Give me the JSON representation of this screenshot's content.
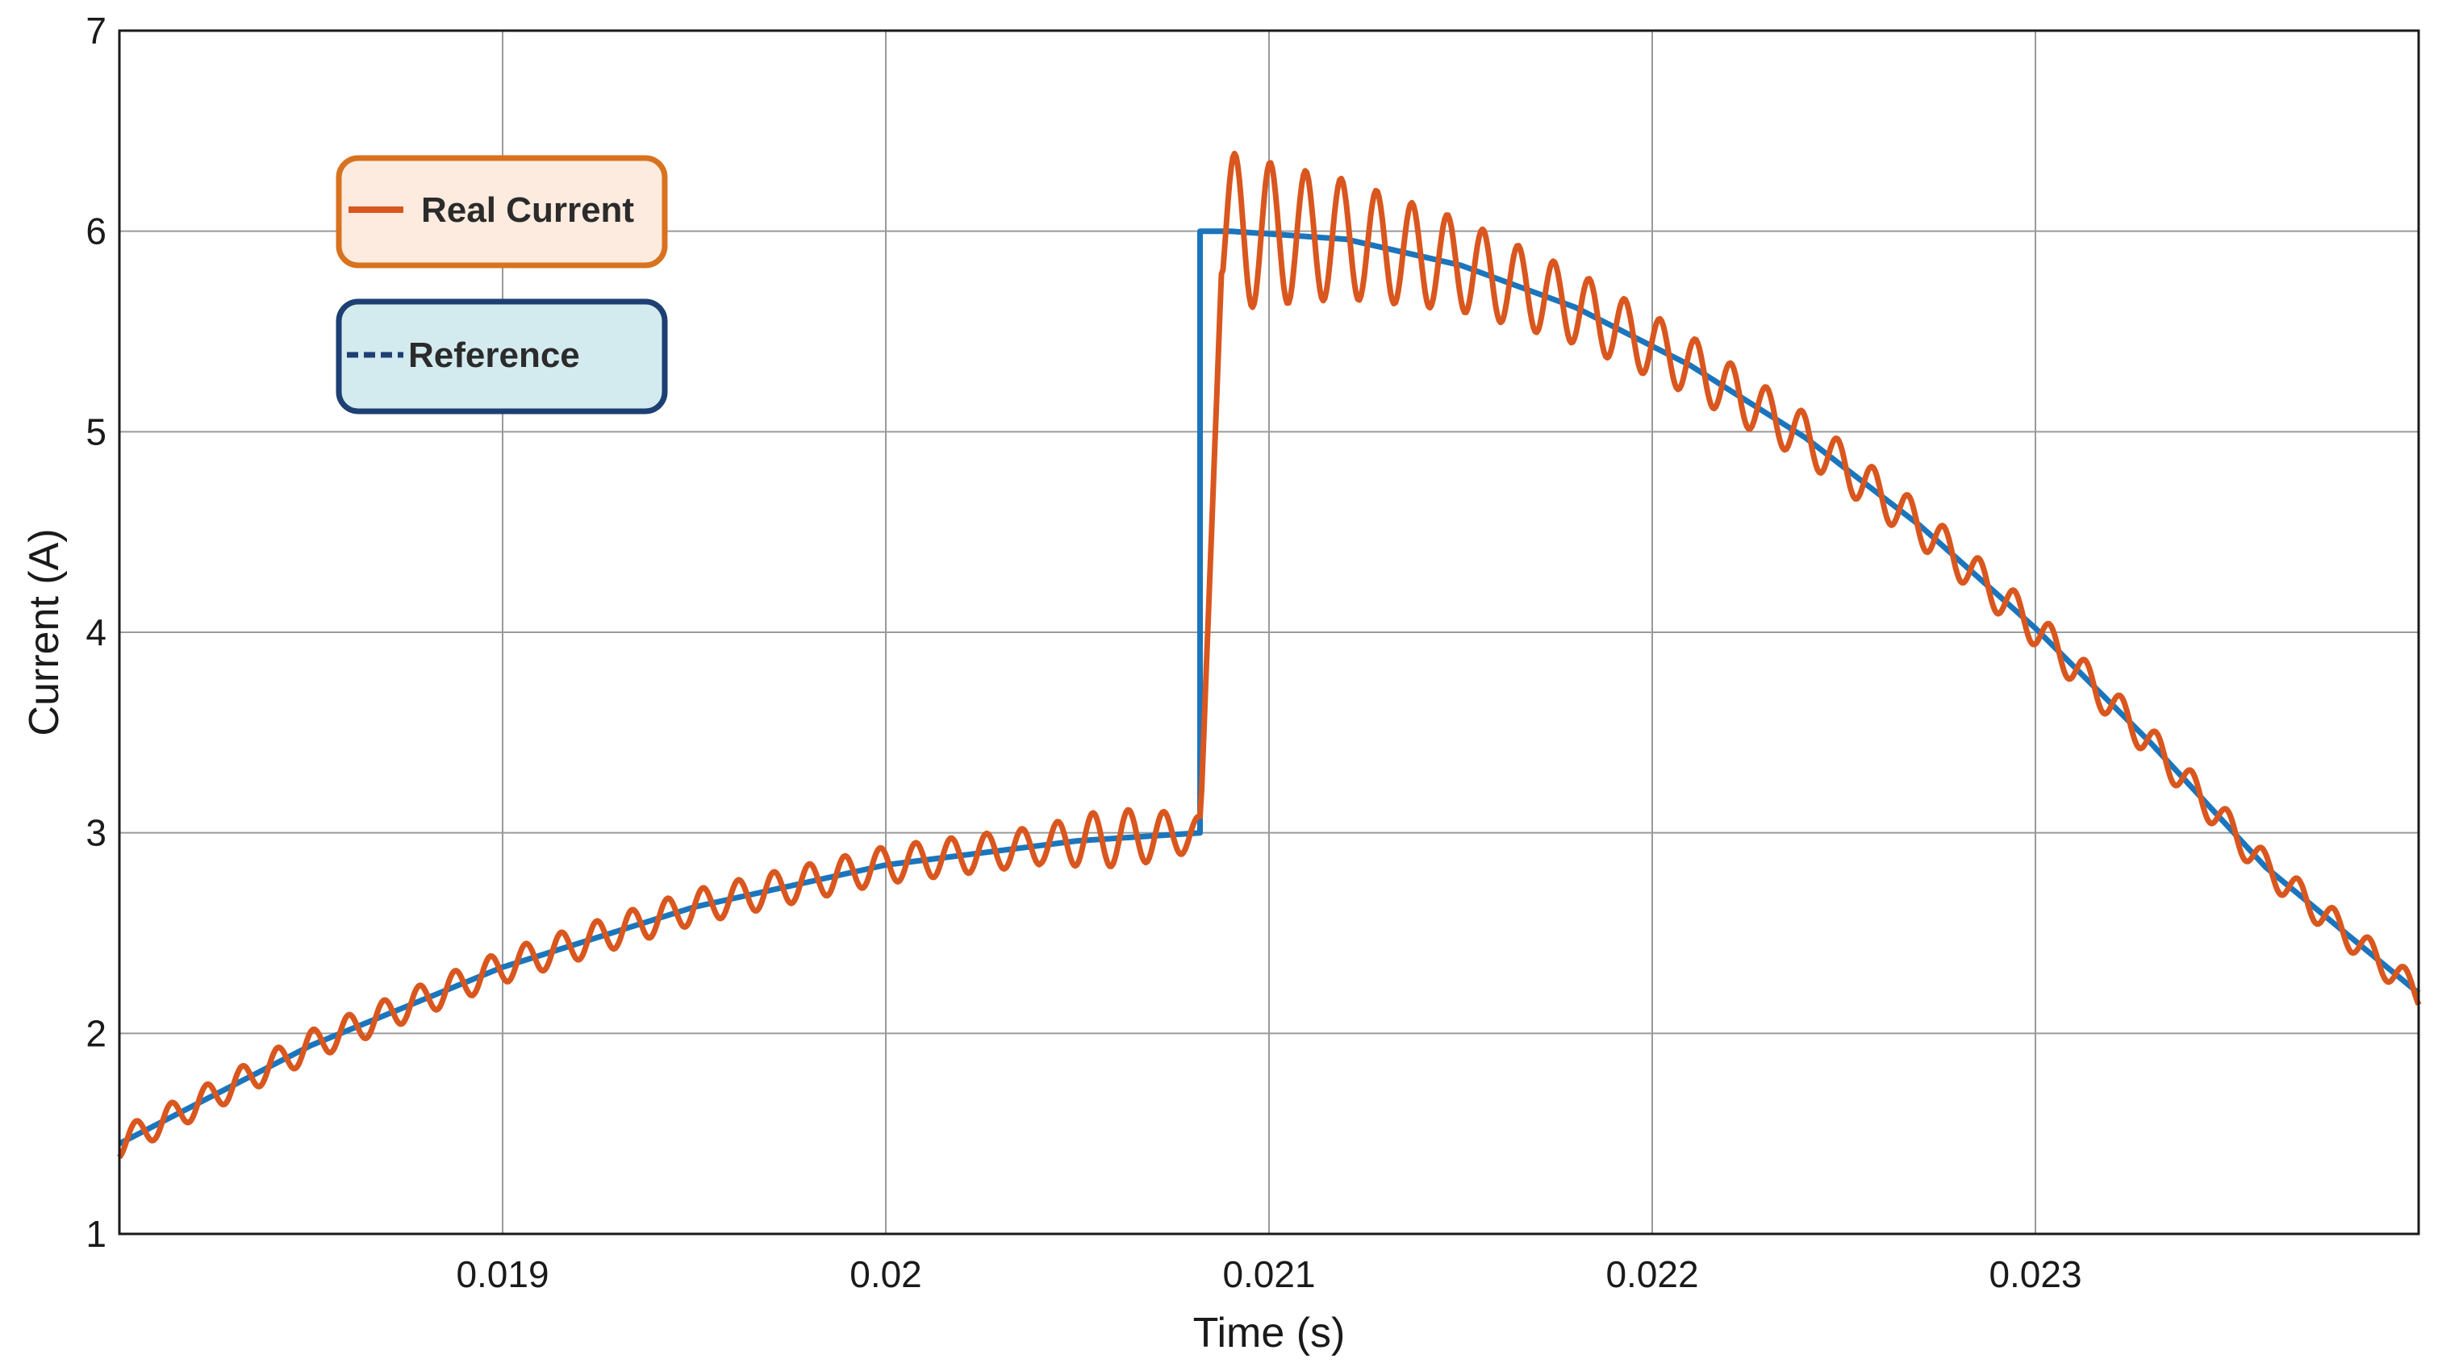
{
  "chart_data": {
    "type": "line",
    "title": "",
    "xlabel": "Time (s)",
    "ylabel": "Current (A)",
    "xlim": [
      0.018,
      0.024
    ],
    "ylim": [
      1,
      7
    ],
    "xticks": [
      0.019,
      0.02,
      0.021,
      0.022,
      0.023
    ],
    "xtick_labels": [
      "0.019",
      "0.02",
      "0.021",
      "0.022",
      "0.023"
    ],
    "yticks": [
      1,
      2,
      3,
      4,
      5,
      6,
      7
    ],
    "ytick_labels": [
      "1",
      "2",
      "3",
      "4",
      "5",
      "6",
      "7"
    ],
    "grid": true,
    "legend_placement": "top-left",
    "series": [
      {
        "name": "Real Current",
        "color": "#d9571f",
        "x": [
          0.018,
          0.0185,
          0.019,
          0.0195,
          0.02,
          0.0205,
          0.02082,
          0.02085,
          0.0209,
          0.0211,
          0.0213,
          0.0216,
          0.0219,
          0.0222,
          0.0225,
          0.0228,
          0.0231,
          0.0234,
          0.0237,
          0.024
        ],
        "values": [
          1.45,
          1.92,
          2.3,
          2.58,
          2.8,
          2.94,
          3.0,
          5.0,
          6.4,
          5.7,
          6.2,
          5.95,
          5.7,
          5.3,
          4.9,
          4.5,
          4.0,
          3.5,
          2.8,
          2.3
        ]
      },
      {
        "name": "Reference",
        "color": "#1b75bc",
        "x": [
          0.018,
          0.0185,
          0.019,
          0.0195,
          0.02,
          0.0205,
          0.02082,
          0.02082,
          0.0209,
          0.0212,
          0.0215,
          0.0218,
          0.0221,
          0.0224,
          0.0227,
          0.023,
          0.0233,
          0.0236,
          0.024
        ],
        "values": [
          1.45,
          1.94,
          2.33,
          2.63,
          2.84,
          2.96,
          3.0,
          6.0,
          6.0,
          5.96,
          5.83,
          5.62,
          5.33,
          4.97,
          4.53,
          4.02,
          3.45,
          2.83,
          2.2
        ]
      }
    ]
  },
  "legend": {
    "real_current_label": "Real Current",
    "reference_label": "Reference",
    "real_current_fill": "#fdebdf",
    "real_current_border": "#d9721f",
    "reference_fill": "#d3ebef",
    "reference_border": "#1e3f73"
  }
}
